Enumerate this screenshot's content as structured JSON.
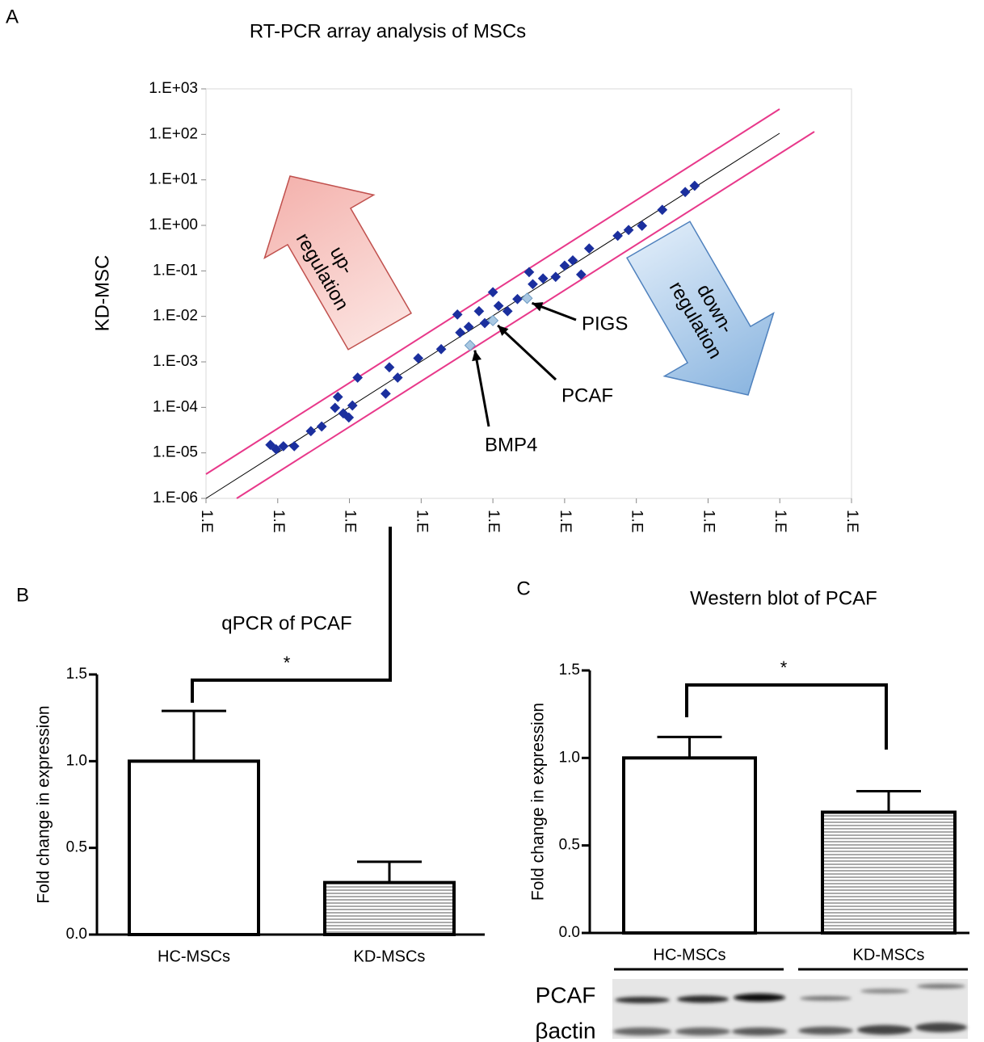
{
  "chart_data": [
    {
      "type": "scatter",
      "panel": "A",
      "title": "RT-PCR array analysis of MSCs",
      "y_label": "KD-MSC",
      "log_x": true,
      "log_y": true,
      "xlim": [
        1e-06,
        1000
      ],
      "ylim": [
        1e-06,
        1000
      ],
      "xticks": [
        {
          "value": 1e-06,
          "label": "1.E"
        },
        {
          "value": 1e-05,
          "label": "1.E"
        },
        {
          "value": 0.0001,
          "label": "1.E"
        },
        {
          "value": 0.001,
          "label": "1.E"
        },
        {
          "value": 0.01,
          "label": "1.E"
        },
        {
          "value": 0.1,
          "label": "1.E"
        },
        {
          "value": 1,
          "label": "1.E"
        },
        {
          "value": 10,
          "label": "1.E"
        },
        {
          "value": 100,
          "label": "1.E"
        },
        {
          "value": 1000,
          "label": "1.E"
        }
      ],
      "yticks": [
        {
          "value": 1e-06,
          "label": "1.E-06"
        },
        {
          "value": 1e-05,
          "label": "1.E-05"
        },
        {
          "value": 0.0001,
          "label": "1.E-04"
        },
        {
          "value": 0.001,
          "label": "1.E-03"
        },
        {
          "value": 0.01,
          "label": "1.E-02"
        },
        {
          "value": 0.1,
          "label": "1.E-01"
        },
        {
          "value": 1,
          "label": "1.E+00"
        },
        {
          "value": 10,
          "label": "1.E+01"
        },
        {
          "value": 100,
          "label": "1.E+02"
        },
        {
          "value": 1000,
          "label": "1.E+03"
        }
      ],
      "series": [
        {
          "color": "#1b2f9e",
          "x": [
            7.9e-06,
            9.5e-06,
            1.2e-05,
            1.7e-05,
            2.9e-05,
            4.1e-05,
            6.9e-05,
            6.3e-05,
            8.2e-05,
            9.8e-05,
            0.00011,
            0.00013,
            0.00032,
            0.00036,
            0.00047,
            0.00091,
            0.0019,
            0.0032,
            0.0035,
            0.0046,
            0.0064,
            0.0077,
            0.01,
            0.012,
            0.016,
            0.022,
            0.032,
            0.036,
            0.05,
            0.075,
            0.1,
            0.13,
            0.17,
            0.22,
            0.55,
            0.78,
            1.2,
            2.3,
            4.8,
            6.5
          ],
          "values": [
            1.5e-05,
            1.2e-05,
            1.4e-05,
            1.4e-05,
            3e-05,
            3.8e-05,
            0.00017,
            9.8e-05,
            7.4e-05,
            6e-05,
            0.00011,
            0.00045,
            0.0002,
            0.00076,
            0.00045,
            0.0012,
            0.0019,
            0.011,
            0.0044,
            0.0059,
            0.013,
            0.0071,
            0.034,
            0.017,
            0.013,
            0.024,
            0.094,
            0.051,
            0.068,
            0.074,
            0.13,
            0.17,
            0.083,
            0.31,
            0.59,
            0.79,
            0.98,
            2.2,
            5.4,
            7.4
          ]
        },
        {
          "color": "#a9c8e2",
          "labels": [
            "BMP4",
            "PCAF",
            "PIGS"
          ],
          "x": [
            0.0048,
            0.01,
            0.03
          ],
          "values": [
            0.0023,
            0.0081,
            0.025
          ]
        }
      ],
      "annotations": {
        "up": [
          "up-",
          "regulation"
        ],
        "down": [
          "down-",
          "regulation"
        ]
      }
    },
    {
      "type": "bar",
      "panel": "B",
      "title": "qPCR of PCAF",
      "y_label": "Fold change in expression",
      "categories": [
        "HC-MSCs",
        "KD-MSCs"
      ],
      "values": [
        1.0,
        0.3
      ],
      "errors": [
        0.29,
        0.12
      ],
      "ylim": [
        0,
        1.5
      ],
      "yticks": [
        {
          "value": 0,
          "label": "0.0"
        },
        0.5,
        {
          "value": 1,
          "label": "1.0"
        },
        1.5
      ],
      "significance": "*"
    },
    {
      "type": "bar",
      "panel": "C",
      "title": "Western blot of PCAF",
      "y_label": "Fold change in expression",
      "categories": [
        "HC-MSCs",
        "KD-MSCs"
      ],
      "values": [
        1.0,
        0.69
      ],
      "errors": [
        0.12,
        0.12
      ],
      "ylim": [
        0,
        1.5
      ],
      "yticks": [
        {
          "value": 0,
          "label": "0.0"
        },
        0.5,
        {
          "value": 1,
          "label": "1.0"
        },
        1.5
      ],
      "significance": "*",
      "blot_rows": [
        "PCAF",
        "βactin"
      ]
    }
  ]
}
